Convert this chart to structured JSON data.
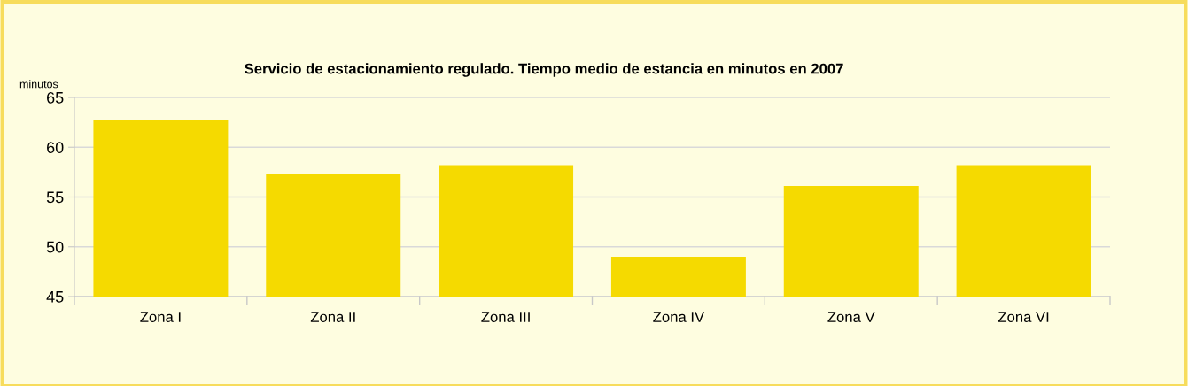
{
  "chart_data": {
    "type": "bar",
    "title": "Servicio de estacionamiento regulado. Tiempo medio de estancia en minutos en 2007",
    "ylabel": "minutos",
    "categories": [
      "Zona I",
      "Zona II",
      "Zona III",
      "Zona IV",
      "Zona V",
      "Zona VI"
    ],
    "values": [
      62.7,
      57.3,
      58.2,
      49.0,
      56.1,
      58.2
    ],
    "color": "#f5da00",
    "ylim": [
      45,
      65
    ],
    "yticks": [
      45,
      50,
      55,
      60,
      65
    ],
    "grid": "y"
  }
}
